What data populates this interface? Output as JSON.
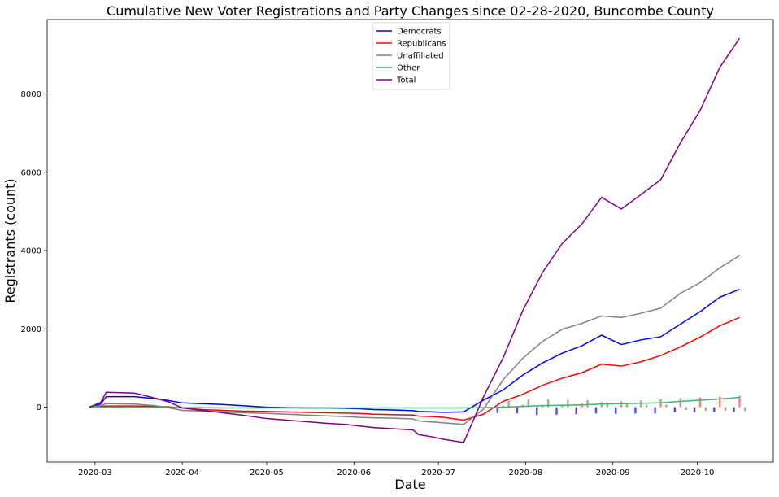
{
  "chart_data": {
    "type": "line",
    "title": "Cumulative New Voter Registrations and Party Changes since 02-28-2020, Buncombe County",
    "xlabel": "Date",
    "ylabel": "Registrants (count)",
    "xlim": [
      "2020-02-13",
      "2020-10-28"
    ],
    "ylim": [
      -1400,
      9900
    ],
    "yticks": [
      0,
      2000,
      4000,
      6000,
      8000
    ],
    "xticks": [
      "2020-03-01",
      "2020-04-01",
      "2020-05-01",
      "2020-06-01",
      "2020-07-01",
      "2020-08-01",
      "2020-09-01",
      "2020-10-01"
    ],
    "xtick_labels": [
      "2020-03",
      "2020-04",
      "2020-05",
      "2020-06",
      "2020-07",
      "2020-08",
      "2020-09",
      "2020-10"
    ],
    "grid": false,
    "legend_position": "top-center",
    "x": [
      "2020-02-28",
      "2020-03-03",
      "2020-03-05",
      "2020-03-15",
      "2020-03-22",
      "2020-03-27",
      "2020-04-01",
      "2020-04-08",
      "2020-04-15",
      "2020-04-22",
      "2020-05-01",
      "2020-05-08",
      "2020-05-15",
      "2020-05-22",
      "2020-05-29",
      "2020-06-03",
      "2020-06-08",
      "2020-06-15",
      "2020-06-22",
      "2020-06-24",
      "2020-06-29",
      "2020-07-03",
      "2020-07-10",
      "2020-07-17",
      "2020-07-24",
      "2020-07-31",
      "2020-08-07",
      "2020-08-14",
      "2020-08-21",
      "2020-08-28",
      "2020-09-04",
      "2020-09-11",
      "2020-09-18",
      "2020-09-25",
      "2020-10-02",
      "2020-10-09",
      "2020-10-16"
    ],
    "series": [
      {
        "name": "Democrats",
        "color": "#0000ff",
        "values": [
          0,
          80,
          270,
          270,
          220,
          170,
          110,
          90,
          70,
          40,
          0,
          -10,
          -20,
          -20,
          -30,
          -40,
          -60,
          -70,
          -90,
          -110,
          -120,
          -130,
          -120,
          180,
          440,
          820,
          1130,
          1380,
          1570,
          1840,
          1600,
          1720,
          1800,
          2120,
          2440,
          2810,
          3010
        ]
      },
      {
        "name": "Republicans",
        "color": "#ff0000",
        "values": [
          0,
          20,
          30,
          30,
          20,
          10,
          -20,
          -60,
          -80,
          -100,
          -110,
          -120,
          -130,
          -140,
          -150,
          -160,
          -180,
          -190,
          -200,
          -230,
          -240,
          -260,
          -330,
          -180,
          150,
          330,
          560,
          740,
          880,
          1100,
          1050,
          1160,
          1320,
          1540,
          1790,
          2080,
          2290
        ]
      },
      {
        "name": "Unaffiliated",
        "color": "#808080",
        "values": [
          0,
          40,
          90,
          80,
          40,
          -10,
          -80,
          -100,
          -120,
          -140,
          -160,
          -180,
          -200,
          -220,
          -240,
          -260,
          -270,
          -280,
          -300,
          -350,
          -380,
          -400,
          -440,
          -50,
          700,
          1250,
          1680,
          1990,
          2140,
          2330,
          2290,
          2400,
          2530,
          2910,
          3180,
          3560,
          3870
        ]
      },
      {
        "name": "Other",
        "color": "#3cb371",
        "values": [
          0,
          0,
          0,
          0,
          -10,
          -10,
          -10,
          -10,
          -20,
          -20,
          -20,
          -20,
          -20,
          -20,
          -20,
          -20,
          -20,
          -20,
          -20,
          -20,
          -20,
          -20,
          -20,
          -10,
          0,
          20,
          40,
          50,
          60,
          80,
          90,
          100,
          110,
          150,
          180,
          210,
          250
        ]
      },
      {
        "name": "Total",
        "color": "#800080",
        "values": [
          0,
          120,
          380,
          360,
          240,
          140,
          -20,
          -80,
          -140,
          -200,
          -290,
          -330,
          -370,
          -410,
          -440,
          -480,
          -520,
          -550,
          -580,
          -700,
          -760,
          -820,
          -900,
          260,
          1260,
          2470,
          3440,
          4180,
          4680,
          5360,
          5060,
          5430,
          5810,
          6750,
          7580,
          8680,
          9420
        ]
      }
    ],
    "bar_dates": [
      "2020-07-24",
      "2020-07-31",
      "2020-08-07",
      "2020-08-14",
      "2020-08-21",
      "2020-08-28",
      "2020-09-04",
      "2020-09-11",
      "2020-09-18",
      "2020-09-25",
      "2020-10-02",
      "2020-10-09",
      "2020-10-16"
    ],
    "bars": [
      {
        "color": "#4c4cff",
        "values": [
          -150,
          -160,
          -200,
          -190,
          -180,
          -160,
          -170,
          -160,
          -160,
          -130,
          -130,
          -120,
          -120
        ]
      },
      {
        "color": "#ff7f7f",
        "values": [
          40,
          60,
          60,
          60,
          90,
          130,
          150,
          170,
          200,
          230,
          250,
          270,
          290
        ]
      },
      {
        "color": "#a6a6a6",
        "values": [
          170,
          200,
          200,
          190,
          180,
          120,
          80,
          60,
          60,
          -70,
          -90,
          -90,
          -100
        ]
      }
    ]
  }
}
